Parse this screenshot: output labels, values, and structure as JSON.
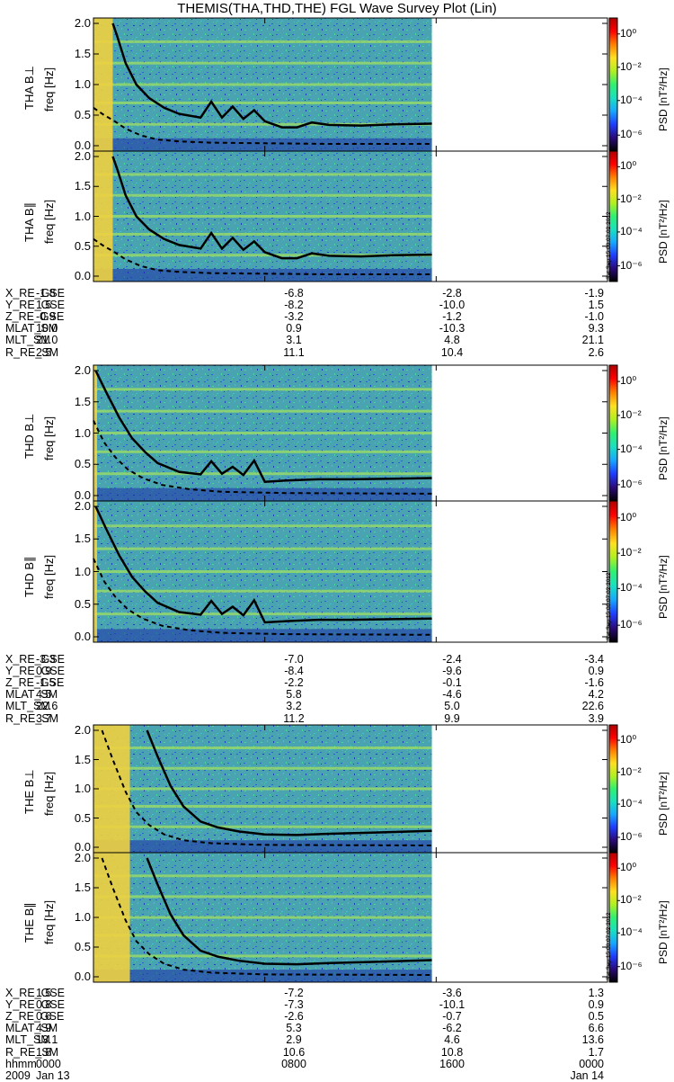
{
  "title": "THEMIS(THA,THD,THE) FGL Wave Survey Plot (Lin)",
  "colors": {
    "background": "#4aa3b0",
    "speckle": [
      "#2c5fe0",
      "#39c6d0",
      "#46d79a",
      "#1f3fb8"
    ],
    "harmonic_band": "#9fe060",
    "bright_region": "#f0d040",
    "curve": "#000000"
  },
  "colorbar": {
    "label": "PSD [nT²/Hz]",
    "tick_labels": [
      "10⁰",
      "10⁻²",
      "10⁻⁴",
      "10⁻⁶"
    ],
    "stops": [
      "#000000",
      "#2a0a7a",
      "#1e3cff",
      "#17a7ff",
      "#19e0c0",
      "#30f070",
      "#b0f020",
      "#ffe020",
      "#ff8000",
      "#ff0000",
      "#b00000"
    ]
  },
  "stamp": "Sat Sep 15 00:07:02 2012",
  "panels": [
    {
      "ylabel": "THA B⊥",
      "freq_label": "freq [Hz]"
    },
    {
      "ylabel": "THA B∥",
      "freq_label": "freq [Hz]"
    },
    {
      "ylabel": "THD B⊥",
      "freq_label": "freq [Hz]"
    },
    {
      "ylabel": "THD B∥",
      "freq_label": "freq [Hz]"
    },
    {
      "ylabel": "THE B⊥",
      "freq_label": "freq [Hz]"
    },
    {
      "ylabel": "THE B∥",
      "freq_label": "freq [Hz]"
    }
  ],
  "freq_ticks": [
    "2.0",
    "1.5",
    "1.0",
    "0.5",
    "0.0"
  ],
  "ephemeris": [
    {
      "rows": [
        {
          "label": "X_RE_GSE",
          "values": [
            "-1.8",
            "-6.8",
            "-2.8",
            "-1.9"
          ]
        },
        {
          "label": "Y_RE_GSE",
          "values": [
            "1.5",
            "-8.2",
            "-10.0",
            "1.5"
          ]
        },
        {
          "label": "Z_RE_GSE",
          "values": [
            "-0.9",
            "-3.2",
            "-1.2",
            "-1.0"
          ]
        },
        {
          "label": "MLAT_SM",
          "values": [
            "10.0",
            "0.9",
            "-10.3",
            "9.3"
          ]
        },
        {
          "label": "MLT_SM",
          "values": [
            "21.0",
            "3.1",
            "4.8",
            "21.1"
          ]
        },
        {
          "label": "R_RE_SM",
          "values": [
            "2.5",
            "11.1",
            "10.4",
            "2.6"
          ]
        }
      ]
    },
    {
      "rows": [
        {
          "label": "X_RE_GSE",
          "values": [
            "-3.3",
            "-7.0",
            "-2.4",
            "-3.4"
          ]
        },
        {
          "label": "Y_RE_GSE",
          "values": [
            "0.9",
            "-8.4",
            "-9.6",
            "0.9"
          ]
        },
        {
          "label": "Z_RE_GSE",
          "values": [
            "-1.5",
            "-2.2",
            "-0.1",
            "-1.6"
          ]
        },
        {
          "label": "MLAT_SM",
          "values": [
            "4.5",
            "5.8",
            "-4.6",
            "4.2"
          ]
        },
        {
          "label": "MLT_SM",
          "values": [
            "22.6",
            "3.2",
            "5.0",
            "22.6"
          ]
        },
        {
          "label": "R_RE_SM",
          "values": [
            "3.7",
            "11.2",
            "9.9",
            "3.9"
          ]
        }
      ]
    },
    {
      "rows": [
        {
          "label": "X_RE_GSE",
          "values": [
            "1.5",
            "-7.2",
            "-3.6",
            "1.3"
          ]
        },
        {
          "label": "Y_RE_GSE",
          "values": [
            "0.8",
            "-7.3",
            "-10.1",
            "0.9"
          ]
        },
        {
          "label": "Z_RE_GSE",
          "values": [
            "0.6",
            "-2.6",
            "-0.7",
            "0.5"
          ]
        },
        {
          "label": "MLAT_SM",
          "values": [
            "4.9",
            "5.3",
            "-6.2",
            "6.6"
          ]
        },
        {
          "label": "MLT_SM",
          "values": [
            "13.1",
            "2.9",
            "4.6",
            "13.6"
          ]
        },
        {
          "label": "R_RE_SM",
          "values": [
            "1.8",
            "10.6",
            "10.8",
            "1.7"
          ]
        },
        {
          "label": "hhmm",
          "values": [
            "0000",
            "0800",
            "1600",
            "0000"
          ]
        }
      ],
      "date_row": {
        "label": "2009",
        "start": "Jan 13",
        "end": "Jan 14"
      }
    }
  ],
  "chart_data": {
    "type": "heatmap",
    "x_axis": {
      "label": "hhmm",
      "ticks": [
        "0000",
        "0800",
        "1600",
        "0000"
      ],
      "dates": [
        "2009 Jan 13",
        "Jan 14"
      ],
      "range_hours": [
        0,
        24
      ],
      "data_end_hours": 15.8
    },
    "y_axis": {
      "label": "freq [Hz]",
      "range": [
        0.0,
        2.0
      ],
      "ticks": [
        0.0,
        0.5,
        1.0,
        1.5,
        2.0
      ]
    },
    "colorbar": {
      "label": "PSD [nT²/Hz]",
      "scale": "log",
      "range": [
        1e-07,
        10.0
      ]
    },
    "series": [
      {
        "panel": "THA B⊥",
        "gyro_hours": [
          0.9,
          1.1,
          1.5,
          2.0,
          2.6,
          3.3,
          4.0,
          5.0,
          5.5,
          6.0,
          6.5,
          7.0,
          7.5,
          8.0,
          8.8,
          9.5,
          10.2,
          11.0,
          12.5,
          14.0,
          15.8
        ],
        "gyro_hz": [
          2.0,
          1.8,
          1.35,
          1.0,
          0.78,
          0.62,
          0.52,
          0.46,
          0.72,
          0.46,
          0.64,
          0.44,
          0.58,
          0.4,
          0.3,
          0.3,
          0.38,
          0.34,
          0.33,
          0.35,
          0.36
        ],
        "half_gyro_hours": [
          0.0,
          0.5,
          0.9,
          1.5,
          2.2,
          3.0,
          4.0,
          5.5,
          8.0,
          11.0,
          15.8
        ],
        "half_gyro_hz": [
          0.62,
          0.5,
          0.42,
          0.28,
          0.17,
          0.1,
          0.07,
          0.05,
          0.04,
          0.03,
          0.03
        ],
        "bright_hours": [
          0.0,
          0.9
        ]
      },
      {
        "panel": "THA B∥",
        "gyro_hours": [
          0.9,
          1.1,
          1.5,
          2.0,
          2.6,
          3.3,
          4.0,
          5.0,
          5.5,
          6.0,
          6.5,
          7.0,
          7.5,
          8.0,
          8.8,
          9.5,
          10.2,
          11.0,
          12.5,
          14.0,
          15.8
        ],
        "gyro_hz": [
          2.0,
          1.8,
          1.35,
          1.0,
          0.78,
          0.62,
          0.52,
          0.46,
          0.72,
          0.46,
          0.64,
          0.44,
          0.58,
          0.4,
          0.3,
          0.3,
          0.38,
          0.34,
          0.33,
          0.35,
          0.36
        ],
        "half_gyro_hours": [
          0.0,
          0.5,
          0.9,
          1.5,
          2.2,
          3.0,
          4.0,
          5.5,
          8.0,
          11.0,
          15.8
        ],
        "half_gyro_hz": [
          0.62,
          0.5,
          0.42,
          0.28,
          0.17,
          0.1,
          0.07,
          0.05,
          0.04,
          0.03,
          0.03
        ],
        "bright_hours": [
          0.0,
          0.9
        ]
      },
      {
        "panel": "THD B⊥",
        "gyro_hours": [
          0.1,
          0.6,
          1.2,
          1.8,
          2.4,
          3.0,
          4.0,
          5.0,
          5.5,
          6.0,
          6.5,
          7.0,
          7.5,
          8.0,
          9.0,
          10.5,
          12.0,
          14.0,
          15.8
        ],
        "gyro_hz": [
          2.0,
          1.65,
          1.25,
          0.92,
          0.7,
          0.52,
          0.38,
          0.34,
          0.55,
          0.35,
          0.46,
          0.33,
          0.56,
          0.22,
          0.24,
          0.26,
          0.26,
          0.27,
          0.28
        ],
        "half_gyro_hours": [
          0.0,
          0.5,
          1.0,
          1.6,
          2.3,
          3.2,
          4.5,
          6.0,
          9.0,
          15.8
        ],
        "half_gyro_hz": [
          1.2,
          0.85,
          0.62,
          0.42,
          0.28,
          0.17,
          0.1,
          0.06,
          0.04,
          0.03
        ],
        "bright_hours": [
          0.0,
          0.1
        ]
      },
      {
        "panel": "THD B∥",
        "gyro_hours": [
          0.1,
          0.6,
          1.2,
          1.8,
          2.4,
          3.0,
          4.0,
          5.0,
          5.5,
          6.0,
          6.5,
          7.0,
          7.5,
          8.0,
          9.0,
          10.5,
          12.0,
          14.0,
          15.8
        ],
        "gyro_hz": [
          2.0,
          1.65,
          1.25,
          0.92,
          0.7,
          0.52,
          0.38,
          0.34,
          0.55,
          0.35,
          0.46,
          0.33,
          0.56,
          0.22,
          0.24,
          0.26,
          0.26,
          0.27,
          0.28
        ],
        "half_gyro_hours": [
          0.0,
          0.5,
          1.0,
          1.6,
          2.3,
          3.2,
          4.5,
          6.0,
          9.0,
          15.8
        ],
        "half_gyro_hz": [
          1.2,
          0.85,
          0.62,
          0.42,
          0.28,
          0.17,
          0.1,
          0.06,
          0.04,
          0.03
        ],
        "bright_hours": [
          0.0,
          0.1
        ]
      },
      {
        "panel": "THE B⊥",
        "gyro_hours": [
          2.5,
          3.0,
          3.6,
          4.2,
          5.0,
          5.8,
          6.8,
          8.0,
          9.5,
          11.0,
          13.0,
          15.8
        ],
        "gyro_hz": [
          2.0,
          1.55,
          1.05,
          0.7,
          0.44,
          0.34,
          0.27,
          0.22,
          0.21,
          0.23,
          0.25,
          0.28
        ],
        "half_gyro_hours": [
          0.4,
          0.9,
          1.5,
          2.0,
          2.6,
          3.3,
          4.2,
          5.5,
          8.0,
          15.8
        ],
        "half_gyro_hz": [
          2.0,
          1.5,
          0.95,
          0.6,
          0.38,
          0.22,
          0.12,
          0.07,
          0.04,
          0.03
        ],
        "bright_hours": [
          0.0,
          1.7
        ]
      },
      {
        "panel": "THE B∥",
        "gyro_hours": [
          2.5,
          3.0,
          3.6,
          4.2,
          5.0,
          5.8,
          6.8,
          8.0,
          9.5,
          11.0,
          13.0,
          15.8
        ],
        "gyro_hz": [
          2.0,
          1.55,
          1.05,
          0.7,
          0.44,
          0.34,
          0.27,
          0.22,
          0.21,
          0.23,
          0.25,
          0.28
        ],
        "half_gyro_hours": [
          0.4,
          0.9,
          1.5,
          2.0,
          2.6,
          3.3,
          4.2,
          5.5,
          8.0,
          15.8
        ],
        "half_gyro_hz": [
          2.0,
          1.5,
          0.95,
          0.6,
          0.38,
          0.22,
          0.12,
          0.07,
          0.04,
          0.03
        ],
        "bright_hours": [
          0.0,
          1.7
        ]
      }
    ]
  }
}
